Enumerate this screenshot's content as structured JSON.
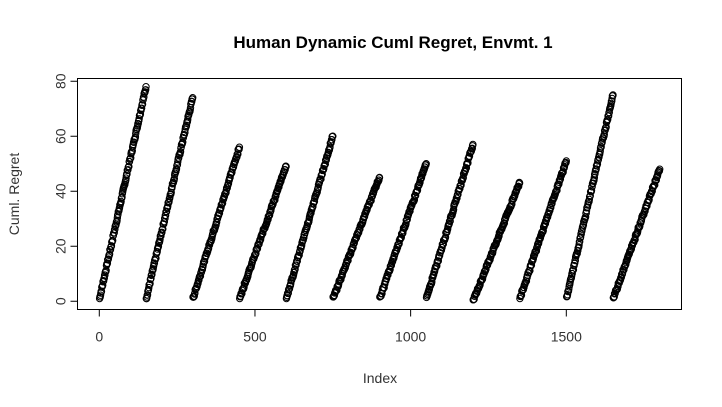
{
  "chart_data": {
    "type": "scatter",
    "title": "Human Dynamic Cuml Regret, Envmt. 1",
    "xlabel": "Index",
    "ylabel": "Cuml. Regret",
    "xlim": [
      -70,
      1870
    ],
    "ylim": [
      -3,
      81
    ],
    "x_ticks": [
      0,
      500,
      1000,
      1500
    ],
    "y_ticks": [
      0,
      20,
      40,
      60,
      80
    ],
    "marker": "open-circle",
    "grid": false,
    "legend": "none",
    "points_per_block": 150,
    "blocks": [
      {
        "start_index": 1,
        "end_index": 150,
        "start_regret": 1,
        "end_regret": 78
      },
      {
        "start_index": 151,
        "end_index": 300,
        "start_regret": 1,
        "end_regret": 74
      },
      {
        "start_index": 301,
        "end_index": 450,
        "start_regret": 1,
        "end_regret": 56
      },
      {
        "start_index": 451,
        "end_index": 600,
        "start_regret": 1,
        "end_regret": 49
      },
      {
        "start_index": 601,
        "end_index": 750,
        "start_regret": 1,
        "end_regret": 60
      },
      {
        "start_index": 751,
        "end_index": 900,
        "start_regret": 1,
        "end_regret": 45
      },
      {
        "start_index": 901,
        "end_index": 1050,
        "start_regret": 1,
        "end_regret": 50
      },
      {
        "start_index": 1051,
        "end_index": 1200,
        "start_regret": 1,
        "end_regret": 57
      },
      {
        "start_index": 1201,
        "end_index": 1350,
        "start_regret": 0,
        "end_regret": 43
      },
      {
        "start_index": 1351,
        "end_index": 1500,
        "start_regret": 1,
        "end_regret": 51
      },
      {
        "start_index": 1501,
        "end_index": 1650,
        "start_regret": 1,
        "end_regret": 75
      },
      {
        "start_index": 1651,
        "end_index": 1800,
        "start_regret": 1,
        "end_regret": 48
      }
    ]
  }
}
